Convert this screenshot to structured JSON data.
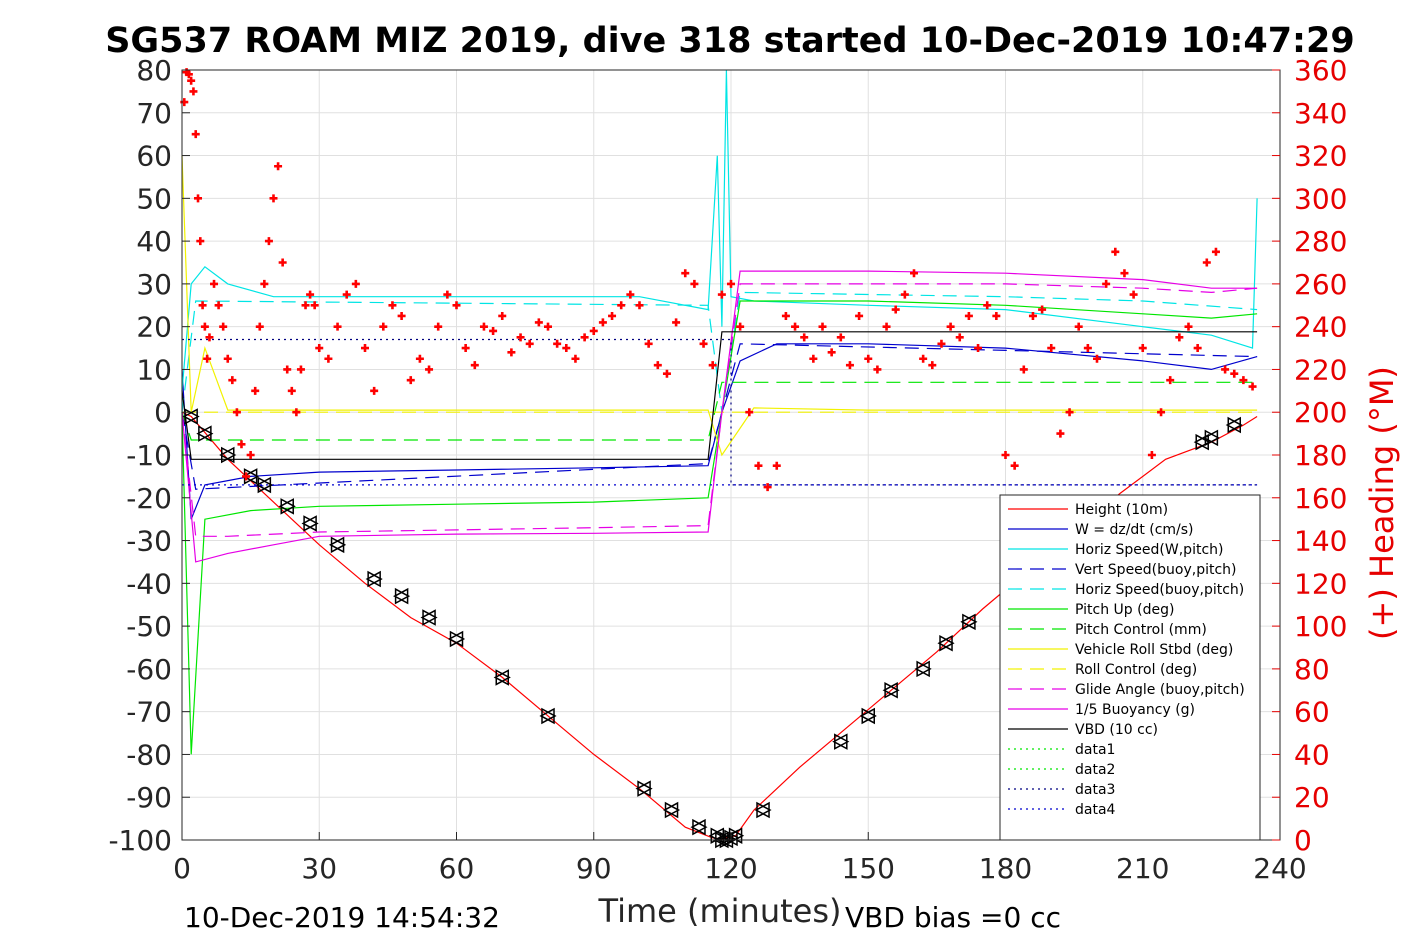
{
  "chart_data": {
    "type": "line",
    "title": "SG537 ROAM MIZ 2019, dive 318 started 10-Dec-2019 10:47:29",
    "xlabel": "Time (minutes)",
    "ylabel_right": "(+) Heading (°M)",
    "footer_left": "10-Dec-2019 14:54:32",
    "footer_right": "VBD bias =0 cc",
    "xlim": [
      0,
      240
    ],
    "ylim_left": [
      -100,
      80
    ],
    "ylim_right": [
      0,
      360
    ],
    "grid": true,
    "legend_position": "lower-right",
    "x_ticks": [
      "0",
      "30",
      "60",
      "90",
      "120",
      "150",
      "180",
      "210",
      "240"
    ],
    "y_ticks_left": [
      "80",
      "70",
      "60",
      "50",
      "40",
      "30",
      "20",
      "10",
      "0",
      "-10",
      "-20",
      "-30",
      "-40",
      "-50",
      "-60",
      "-70",
      "-80",
      "-90",
      "-100"
    ],
    "y_ticks_right": [
      "360",
      "340",
      "320",
      "300",
      "280",
      "260",
      "240",
      "220",
      "200",
      "180",
      "160",
      "140",
      "120",
      "100",
      "80",
      "60",
      "40",
      "20",
      "0"
    ],
    "series": [
      {
        "name": "Height (10m)",
        "color": "#ff0000",
        "style": "solid",
        "x": [
          0,
          2,
          10,
          20,
          30,
          40,
          50,
          60,
          70,
          80,
          90,
          100,
          110,
          116,
          118,
          121,
          125,
          135,
          145,
          155,
          165,
          175,
          185,
          195,
          205,
          215,
          225,
          232,
          235
        ],
        "y": [
          0,
          -1,
          -11,
          -21,
          -31,
          -40,
          -48,
          -54,
          -62,
          -71,
          -80,
          -88,
          -97,
          -99.5,
          -99.8,
          -99,
          -93,
          -83,
          -74,
          -65,
          -56,
          -46,
          -37,
          -28,
          -19,
          -11,
          -7,
          -3,
          -1
        ]
      },
      {
        "name": "W = dz/dt (cm/s)",
        "color": "#0000cd",
        "style": "solid",
        "x": [
          0,
          2,
          5,
          15,
          30,
          60,
          90,
          115,
          118,
          122,
          130,
          150,
          180,
          210,
          225,
          235
        ],
        "y": [
          10,
          -25,
          -17,
          -15,
          -14,
          -13.5,
          -13,
          -12.5,
          0,
          12,
          16,
          16,
          15,
          12,
          10,
          13
        ]
      },
      {
        "name": "Horiz Speed(W,pitch)",
        "color": "#00e5e5",
        "style": "solid",
        "x": [
          0,
          2,
          5,
          10,
          20,
          40,
          60,
          80,
          100,
          115,
          117,
          118,
          119,
          120,
          125,
          150,
          180,
          210,
          225,
          234,
          235
        ],
        "y": [
          5,
          30,
          34,
          30,
          27,
          27,
          27,
          27,
          27,
          24,
          60,
          20,
          80,
          27,
          26,
          25,
          24,
          20,
          18,
          15,
          50
        ]
      },
      {
        "name": "Vert Speed(buoy,pitch)",
        "color": "#0000cd",
        "style": "dashed",
        "x": [
          0,
          3,
          115,
          118,
          122,
          235
        ],
        "y": [
          0,
          -18,
          -12,
          0,
          16,
          13
        ]
      },
      {
        "name": "Horiz Speed(buoy,pitch)",
        "color": "#00e5e5",
        "style": "dashed",
        "x": [
          0,
          3,
          115,
          118,
          122,
          180,
          210,
          235
        ],
        "y": [
          0,
          26,
          25,
          0,
          28,
          27,
          26,
          24
        ]
      },
      {
        "name": "Pitch Up (deg)",
        "color": "#00e600",
        "style": "solid",
        "x": [
          0,
          2,
          5,
          15,
          30,
          60,
          90,
          115,
          118,
          122,
          150,
          180,
          210,
          225,
          235
        ],
        "y": [
          0,
          -80,
          -25,
          -23,
          -22,
          -21.5,
          -21,
          -20,
          0,
          26,
          26,
          25,
          23,
          22,
          23
        ]
      },
      {
        "name": "Pitch Control (mm)",
        "color": "#00e600",
        "style": "dashed",
        "x": [
          0,
          2,
          115,
          118,
          128,
          235
        ],
        "y": [
          0,
          -6.5,
          -6.5,
          7,
          7,
          7
        ]
      },
      {
        "name": "Vehicle Roll Stbd (deg)",
        "color": "#f2f200",
        "style": "solid",
        "x": [
          0,
          2,
          5,
          10,
          30,
          60,
          90,
          115,
          118,
          125,
          150,
          180,
          210,
          225,
          235
        ],
        "y": [
          60,
          0,
          15,
          0.5,
          0.5,
          0.5,
          0.5,
          0.5,
          -10,
          1,
          0.5,
          0.5,
          0.5,
          0.5,
          0.5
        ]
      },
      {
        "name": "Roll Control (deg)",
        "color": "#f2f200",
        "style": "dashed",
        "x": [
          0,
          235
        ],
        "y": [
          0,
          0
        ]
      },
      {
        "name": "Glide Angle (buoy,pitch)",
        "color": "#e600e6",
        "style": "dashed",
        "x": [
          0,
          3,
          10,
          30,
          60,
          90,
          115,
          118,
          122,
          180,
          210,
          225,
          235
        ],
        "y": [
          0,
          -29,
          -29,
          -28,
          -27.5,
          -27,
          -26.5,
          0,
          30,
          30,
          29,
          28,
          29
        ]
      },
      {
        "name": "1/5 Buoyancy (g)",
        "color": "#e600e6",
        "style": "solid",
        "x": [
          0,
          3,
          10,
          20,
          30,
          60,
          90,
          115,
          118,
          122,
          150,
          180,
          210,
          225,
          235
        ],
        "y": [
          0,
          -35,
          -33,
          -31,
          -29,
          -28.5,
          -28.3,
          -28,
          0,
          33,
          33,
          32.5,
          31,
          29,
          29
        ]
      },
      {
        "name": "VBD (10 cc)",
        "color": "#000000",
        "style": "solid",
        "x": [
          0,
          2,
          115,
          118,
          120,
          235
        ],
        "y": [
          5,
          -11,
          -11,
          18.8,
          18.8,
          18.8
        ]
      },
      {
        "name": "data1",
        "color": "#00e600",
        "style": "dotted",
        "x": [
          0,
          0
        ],
        "y": [
          0,
          0
        ]
      },
      {
        "name": "data2",
        "color": "#00e600",
        "style": "dotted",
        "x": [
          0,
          0
        ],
        "y": [
          0,
          0
        ]
      },
      {
        "name": "data3",
        "color": "#000080",
        "style": "dotted",
        "x": [
          0,
          120,
          120,
          235
        ],
        "y": [
          17,
          17,
          -17,
          -17
        ]
      },
      {
        "name": "data4",
        "color": "#0000cd",
        "style": "dotted",
        "x": [
          0,
          235
        ],
        "y": [
          -17,
          -17
        ]
      }
    ],
    "heading_markers": {
      "axis": "right",
      "color": "#ff0000",
      "marker": "plus",
      "x": [
        0.5,
        1,
        1.5,
        2,
        2.5,
        3,
        3.5,
        4,
        4.5,
        5,
        5.5,
        6,
        7,
        8,
        9,
        10,
        11,
        12,
        13,
        14,
        15,
        16,
        17,
        18,
        19,
        20,
        21,
        22,
        23,
        24,
        25,
        26,
        27,
        28,
        29,
        30,
        32,
        34,
        36,
        38,
        40,
        42,
        44,
        46,
        48,
        50,
        52,
        54,
        56,
        58,
        60,
        62,
        64,
        66,
        68,
        70,
        72,
        74,
        76,
        78,
        80,
        82,
        84,
        86,
        88,
        90,
        92,
        94,
        96,
        98,
        100,
        102,
        104,
        106,
        108,
        110,
        112,
        114,
        116,
        118,
        120,
        122,
        124,
        126,
        128,
        130,
        132,
        134,
        136,
        138,
        140,
        142,
        144,
        146,
        148,
        150,
        152,
        154,
        156,
        158,
        160,
        162,
        164,
        166,
        168,
        170,
        172,
        174,
        176,
        178,
        180,
        182,
        184,
        186,
        188,
        190,
        192,
        194,
        196,
        198,
        200,
        202,
        204,
        206,
        208,
        210,
        212,
        214,
        216,
        218,
        220,
        222,
        224,
        226,
        228,
        230,
        232,
        234
      ],
      "y": [
        345,
        359,
        358,
        355,
        350,
        330,
        300,
        280,
        250,
        240,
        225,
        235,
        260,
        250,
        240,
        225,
        215,
        200,
        185,
        170,
        180,
        210,
        240,
        260,
        280,
        300,
        315,
        270,
        220,
        210,
        200,
        220,
        250,
        255,
        250,
        230,
        225,
        240,
        255,
        260,
        230,
        210,
        240,
        250,
        245,
        215,
        225,
        220,
        240,
        255,
        250,
        230,
        222,
        240,
        238,
        245,
        228,
        235,
        232,
        242,
        240,
        232,
        230,
        225,
        235,
        238,
        242,
        245,
        250,
        255,
        250,
        232,
        222,
        218,
        242,
        265,
        260,
        232,
        222,
        255,
        260,
        240,
        200,
        175,
        165,
        175,
        245,
        240,
        235,
        225,
        240,
        228,
        235,
        222,
        245,
        225,
        220,
        240,
        248,
        255,
        265,
        225,
        222,
        232,
        240,
        235,
        245,
        230,
        250,
        245,
        180,
        175,
        220,
        245,
        248,
        230,
        190,
        200,
        240,
        230,
        225,
        260,
        275,
        265,
        255,
        230,
        180,
        200,
        215,
        235,
        240,
        230,
        270,
        275,
        220,
        218,
        215,
        212
      ]
    },
    "depth_markers": {
      "axis": "left",
      "color": "#000000",
      "x": [
        2,
        5,
        10,
        15,
        18,
        23,
        28,
        34,
        42,
        48,
        54,
        60,
        70,
        80,
        101,
        107,
        113,
        117,
        118,
        119,
        120,
        121,
        127,
        144,
        150,
        155,
        162,
        167,
        172,
        223,
        225,
        230
      ],
      "y": [
        -1,
        -5,
        -10,
        -15,
        -17,
        -22,
        -26,
        -31,
        -39,
        -43,
        -48,
        -53,
        -62,
        -71,
        -88,
        -93,
        -97,
        -99,
        -100,
        -100,
        -99.5,
        -99,
        -93,
        -77,
        -71,
        -65,
        -60,
        -54,
        -49,
        -7,
        -6,
        -3
      ]
    }
  }
}
